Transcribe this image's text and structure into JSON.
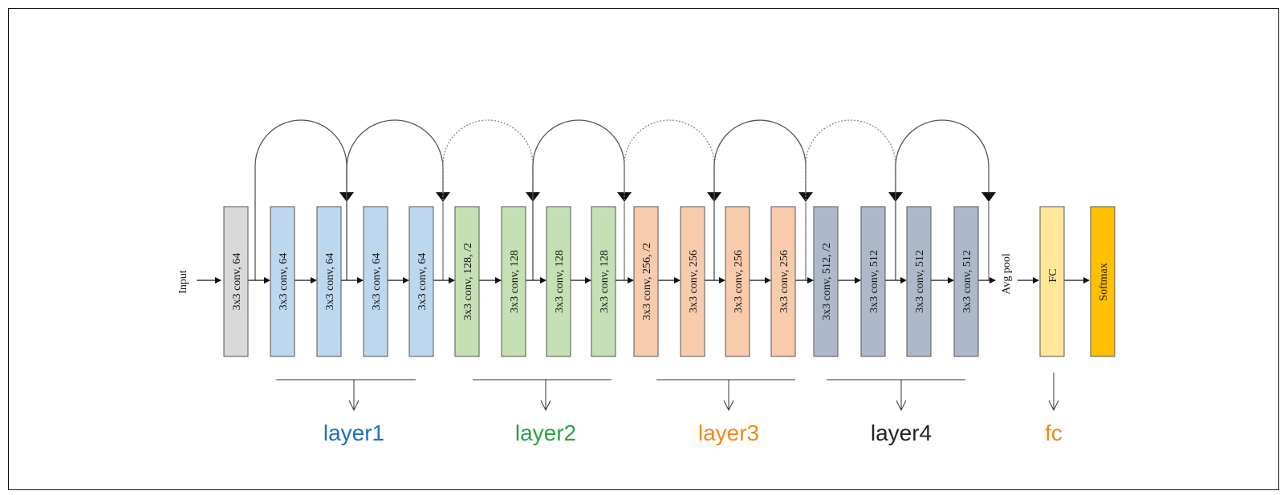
{
  "input_label": "Input",
  "blocks": [
    {
      "label": "3x3 conv, 64",
      "color": "#d9d9d9"
    },
    {
      "label": "3x3 conv, 64",
      "color": "#bdd7ee"
    },
    {
      "label": "3x3 conv, 64",
      "color": "#bdd7ee"
    },
    {
      "label": "3x3 conv, 64",
      "color": "#bdd7ee"
    },
    {
      "label": "3x3 conv, 64",
      "color": "#bdd7ee"
    },
    {
      "label": "3x3 conv, 128, /2",
      "color": "#c5e0b4"
    },
    {
      "label": "3x3 conv, 128",
      "color": "#c5e0b4"
    },
    {
      "label": "3x3 conv, 128",
      "color": "#c5e0b4"
    },
    {
      "label": "3x3 conv, 128",
      "color": "#c5e0b4"
    },
    {
      "label": "3x3 conv, 256, /2",
      "color": "#f8cbad"
    },
    {
      "label": "3x3 conv, 256",
      "color": "#f8cbad"
    },
    {
      "label": "3x3 conv, 256",
      "color": "#f8cbad"
    },
    {
      "label": "3x3 conv, 256",
      "color": "#f8cbad"
    },
    {
      "label": "3x3 conv, 512, /2",
      "color": "#adb9ca"
    },
    {
      "label": "3x3 conv, 512",
      "color": "#adb9ca"
    },
    {
      "label": "3x3 conv, 512",
      "color": "#adb9ca"
    },
    {
      "label": "3x3 conv, 512",
      "color": "#adb9ca"
    }
  ],
  "avg_pool_label": "Avg pool",
  "fc_block": {
    "label": "FC",
    "color": "#ffe699"
  },
  "softmax_block": {
    "label": "Softmax",
    "color": "#ffc000"
  },
  "groups": [
    {
      "label": "layer1",
      "color": "#1f6fc0"
    },
    {
      "label": "layer2",
      "color": "#2ea043"
    },
    {
      "label": "layer3",
      "color": "#f0891a"
    },
    {
      "label": "layer4",
      "color": "#222222"
    },
    {
      "label": "fc",
      "color": "#f0891a"
    }
  ]
}
